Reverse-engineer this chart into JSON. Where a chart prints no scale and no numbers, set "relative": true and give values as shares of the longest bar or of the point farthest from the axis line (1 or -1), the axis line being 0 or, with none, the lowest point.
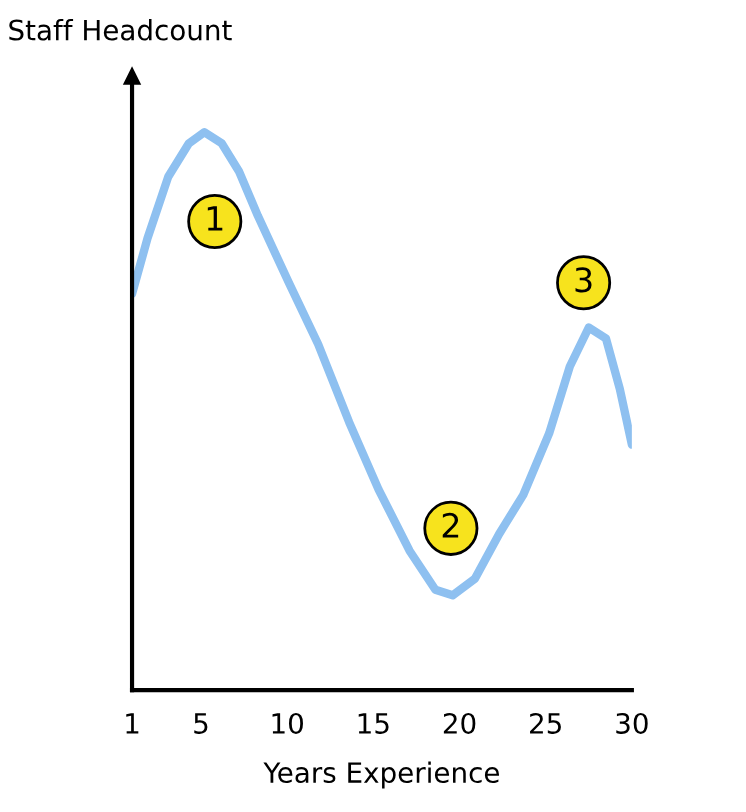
{
  "chart_data": {
    "type": "line",
    "relative": true,
    "ylabel": "Staff Headcount",
    "xlabel": "Years Experience",
    "xlim": [
      1,
      30
    ],
    "xticks": [
      1,
      5,
      10,
      15,
      20,
      25,
      30
    ],
    "grid": false,
    "legend": false,
    "marker": "none",
    "line_style": "solid",
    "x": [
      1,
      1.9,
      3.1,
      4.3,
      5.2,
      6.2,
      7.2,
      8.3,
      10.1,
      11.8,
      13.6,
      15.3,
      17.1,
      18.6,
      19.6,
      20.9,
      22.3,
      23.7,
      25.2,
      26.4,
      27.5,
      28.5,
      29.3,
      30
    ],
    "series": [
      {
        "color": "#8ec0f0",
        "values": [
          0.71,
          0.81,
          0.92,
          0.98,
          1.0,
          0.98,
          0.93,
          0.85,
          0.73,
          0.62,
          0.48,
          0.36,
          0.25,
          0.18,
          0.17,
          0.2,
          0.28,
          0.35,
          0.46,
          0.58,
          0.65,
          0.63,
          0.54,
          0.44
        ]
      }
    ],
    "annotations": [
      {
        "text": "1",
        "x": 5.8,
        "y": 0.84
      },
      {
        "text": "2",
        "x": 19.5,
        "y": 0.29
      },
      {
        "text": "3",
        "x": 27.2,
        "y": 0.73
      }
    ]
  }
}
